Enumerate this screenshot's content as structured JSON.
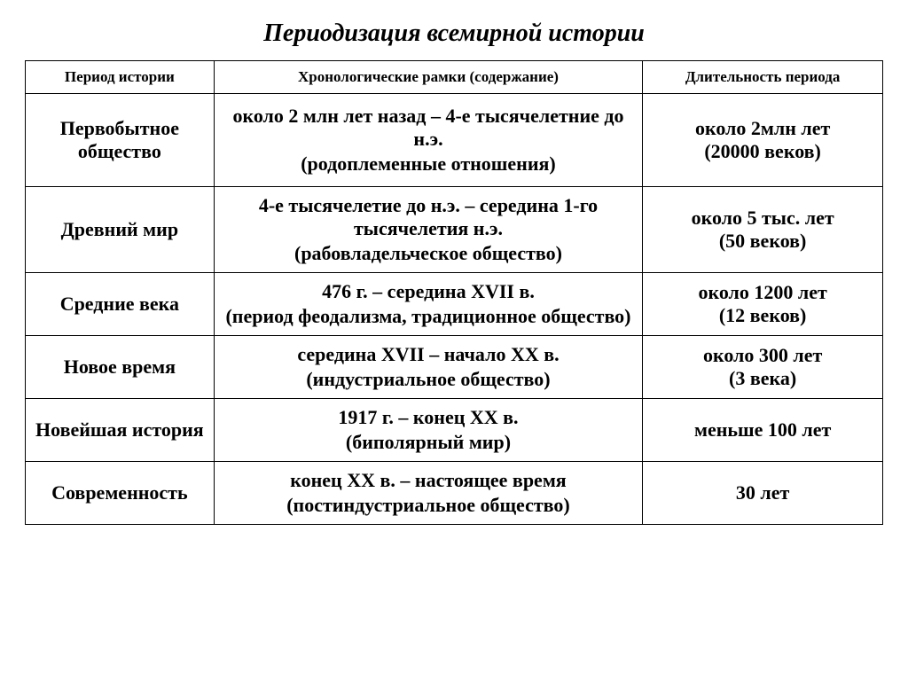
{
  "title": "Периодизация всемирной истории",
  "columns": {
    "c1": "Период истории",
    "c2": "Хронологические рамки (содержание)",
    "c3": "Длительность периода"
  },
  "rows": [
    {
      "period": "Первобытное общество",
      "chron_main": "около 2 млн лет назад – 4-е тысячелетние до н.э.",
      "chron_sub": "(родоплеменные отношения)",
      "dur_main": "около 2млн лет",
      "dur_sub": "(20000 веков)"
    },
    {
      "period": "Древний мир",
      "chron_main": "4-е тысячелетие до н.э. – середина 1-го тысячелетия н.э.",
      "chron_sub": "(рабовладельческое общество)",
      "dur_main": "около 5 тыс. лет",
      "dur_sub": "(50 веков)"
    },
    {
      "period": "Средние века",
      "chron_main": "476 г. – середина XVII в.",
      "chron_sub": "(период феодализма, традиционное общество)",
      "dur_main": "около 1200 лет",
      "dur_sub": "(12 веков)"
    },
    {
      "period": "Новое время",
      "chron_main": "середина XVII – начало XX в.",
      "chron_sub": "(индустриальное общество)",
      "dur_main": "около 300 лет",
      "dur_sub": "(3 века)"
    },
    {
      "period": "Новейшая история",
      "chron_main": "1917 г. – конец XX в.",
      "chron_sub": "(биполярный мир)",
      "dur_main": "меньше 100 лет",
      "dur_sub": ""
    },
    {
      "period": "Современность",
      "chron_main": "конец XX в. – настоящее время",
      "chron_sub": "(постиндустриальное общество)",
      "dur_main": "30 лет",
      "dur_sub": ""
    }
  ]
}
